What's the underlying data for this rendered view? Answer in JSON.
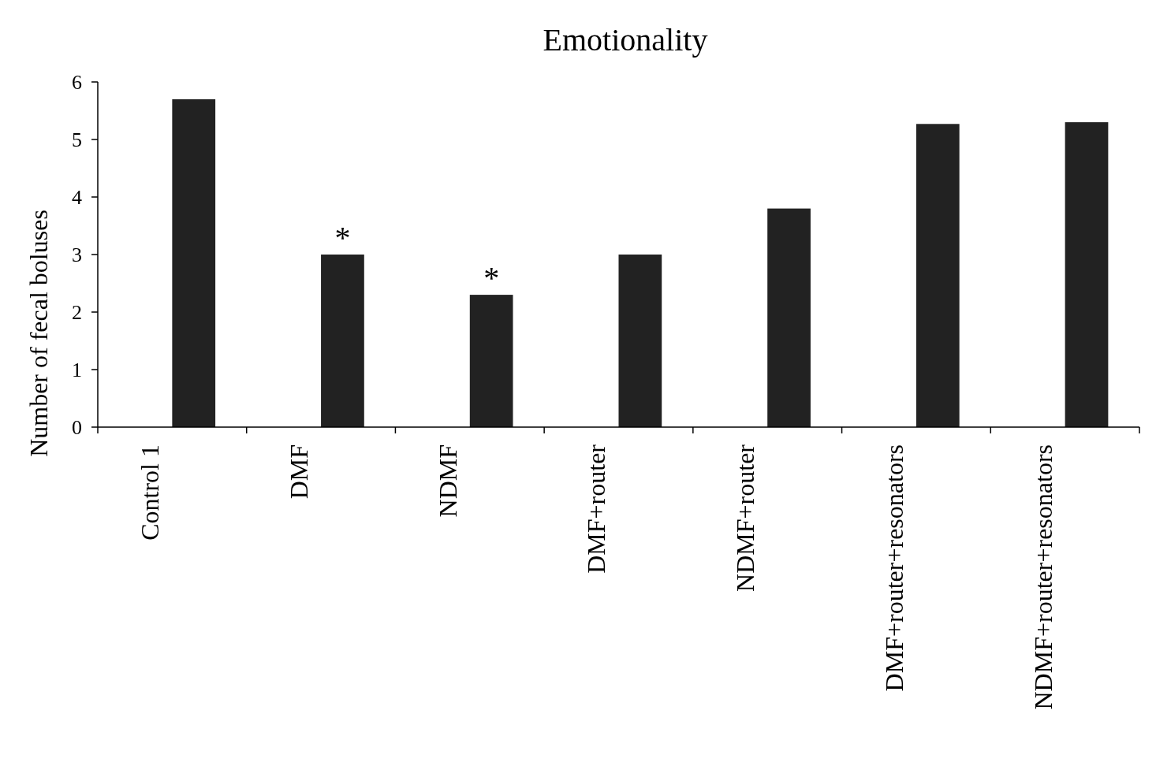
{
  "chart_data": {
    "type": "bar",
    "title": "Emotionality",
    "ylabel": "Number of fecal boluses",
    "categories": [
      "Control 1",
      "DMF",
      "NDMF",
      "DMF+router",
      "NDMF+router",
      "DMF+router+resonators",
      "NDMF+router+resonators"
    ],
    "values": [
      5.7,
      3.0,
      2.3,
      3.0,
      3.8,
      5.27,
      5.3
    ],
    "color": "#222222",
    "ylim": [
      0,
      6
    ],
    "yticks": [
      0,
      1,
      2,
      3,
      4,
      5,
      6
    ],
    "grid": false,
    "annotations": [
      "*",
      "*"
    ]
  }
}
